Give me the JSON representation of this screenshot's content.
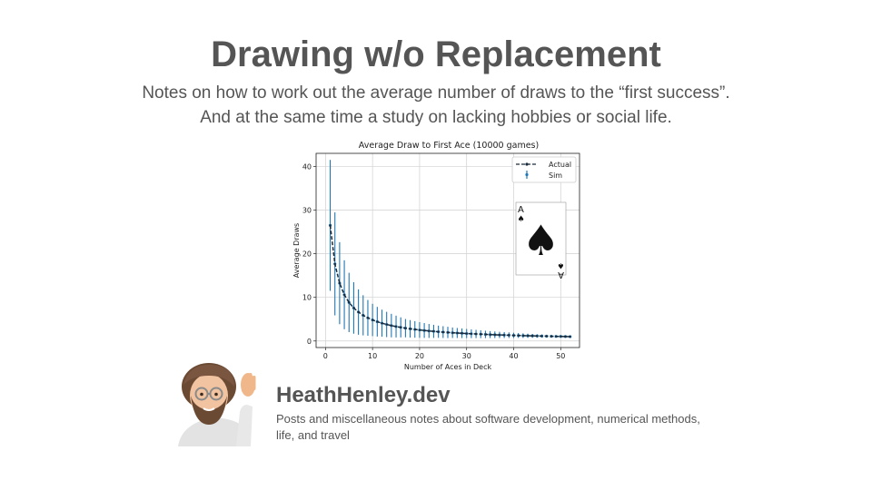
{
  "page": {
    "title": "Drawing w/o Replacement",
    "subtitle_line1": "Notes on how to work out the average number of draws to the “first success”.",
    "subtitle_line2": "And at the same time a study on lacking hobbies or social life."
  },
  "footer": {
    "brand": "HeathHenley.dev",
    "description": "Posts and miscellaneous notes about software development, numerical methods, life, and travel"
  },
  "card": {
    "rank_top": "A",
    "rank_bottom": "A",
    "suit": "♠"
  },
  "colors": {
    "sim": "#1f77b4",
    "actual": "#1a2a3a",
    "text": "#555555"
  },
  "chart_data": {
    "type": "line",
    "title": "Average Draw to First Ace (10000 games)",
    "xlabel": "Number of Aces in Deck",
    "ylabel": "Average Draws",
    "xlim": [
      -2,
      54
    ],
    "ylim": [
      -1.5,
      43
    ],
    "xticks": [
      0,
      10,
      20,
      30,
      40,
      50
    ],
    "yticks": [
      0,
      10,
      20,
      30,
      40
    ],
    "grid": true,
    "legend_position": "top-right",
    "series": [
      {
        "name": "Actual",
        "style": "dashed-with-markers",
        "x": [
          1,
          2,
          3,
          4,
          5,
          6,
          7,
          8,
          9,
          10,
          11,
          12,
          13,
          14,
          15,
          16,
          17,
          18,
          19,
          20,
          21,
          22,
          23,
          24,
          25,
          26,
          27,
          28,
          29,
          30,
          31,
          32,
          33,
          34,
          35,
          36,
          37,
          38,
          39,
          40,
          41,
          42,
          43,
          44,
          45,
          46,
          47,
          48,
          49,
          50,
          51,
          52
        ],
        "y": [
          26.5,
          17.67,
          13.25,
          10.6,
          8.83,
          7.57,
          6.63,
          5.89,
          5.3,
          4.82,
          4.42,
          4.08,
          3.79,
          3.53,
          3.31,
          3.12,
          2.94,
          2.79,
          2.65,
          2.52,
          2.41,
          2.3,
          2.21,
          2.12,
          2.04,
          1.96,
          1.89,
          1.83,
          1.77,
          1.71,
          1.66,
          1.61,
          1.56,
          1.51,
          1.47,
          1.43,
          1.39,
          1.36,
          1.33,
          1.29,
          1.26,
          1.23,
          1.2,
          1.18,
          1.15,
          1.13,
          1.1,
          1.08,
          1.06,
          1.04,
          1.02,
          1.0
        ]
      },
      {
        "name": "Sim",
        "style": "errorbar",
        "x": [
          1,
          2,
          3,
          4,
          5,
          6,
          7,
          8,
          9,
          10,
          11,
          12,
          13,
          14,
          15,
          16,
          17,
          18,
          19,
          20,
          21,
          22,
          23,
          24,
          25,
          26,
          27,
          28,
          29,
          30,
          31,
          32,
          33,
          34,
          35,
          36,
          37,
          38,
          39,
          40,
          41,
          42,
          43,
          44,
          45,
          46,
          47,
          48,
          49,
          50,
          51,
          52
        ],
        "y": [
          26.5,
          17.67,
          13.25,
          10.6,
          8.83,
          7.57,
          6.63,
          5.89,
          5.3,
          4.82,
          4.42,
          4.08,
          3.79,
          3.53,
          3.31,
          3.12,
          2.94,
          2.79,
          2.65,
          2.52,
          2.41,
          2.3,
          2.21,
          2.12,
          2.04,
          1.96,
          1.89,
          1.83,
          1.77,
          1.71,
          1.66,
          1.61,
          1.56,
          1.51,
          1.47,
          1.43,
          1.39,
          1.36,
          1.33,
          1.29,
          1.26,
          1.23,
          1.2,
          1.18,
          1.15,
          1.13,
          1.1,
          1.08,
          1.06,
          1.04,
          1.02,
          1.0
        ],
        "err": [
          15.0,
          11.8,
          9.4,
          7.9,
          6.8,
          5.9,
          5.2,
          4.6,
          4.1,
          3.7,
          3.4,
          3.1,
          2.9,
          2.7,
          2.5,
          2.3,
          2.1,
          2.0,
          1.9,
          1.8,
          1.7,
          1.6,
          1.5,
          1.4,
          1.35,
          1.3,
          1.2,
          1.15,
          1.1,
          1.05,
          1.0,
          0.95,
          0.9,
          0.85,
          0.8,
          0.76,
          0.72,
          0.68,
          0.64,
          0.6,
          0.56,
          0.52,
          0.48,
          0.44,
          0.4,
          0.36,
          0.32,
          0.28,
          0.24,
          0.2,
          0.14,
          0.0
        ]
      }
    ]
  }
}
